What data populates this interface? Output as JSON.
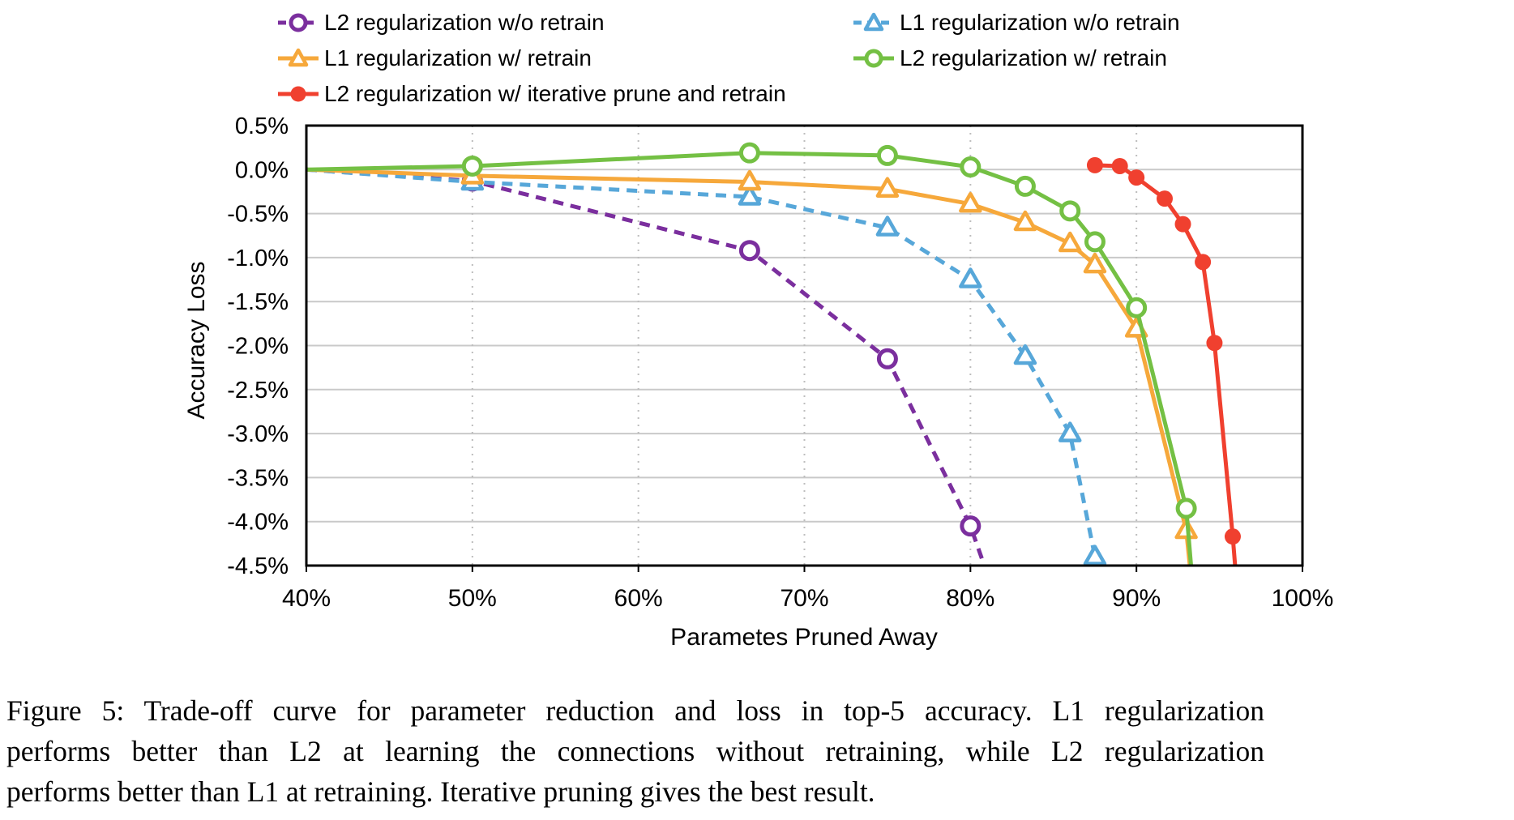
{
  "figure": {
    "caption_lines": [
      "Figure 5: Trade-off curve for parameter reduction and loss in top-5 accuracy. L1 regularization",
      "performs better than L2 at learning the connections without retraining, while L2 regularization",
      "performs better than L1 at retraining. Iterative pruning gives the best result."
    ]
  },
  "chart_data": {
    "type": "line",
    "title": "",
    "xlabel": "Parametes Pruned Away",
    "ylabel": "Accuracy Loss",
    "xlim": [
      40,
      100
    ],
    "ylim": [
      -4.5,
      0.5
    ],
    "xticks": {
      "values": [
        40,
        50,
        60,
        70,
        80,
        90,
        100
      ],
      "labels": [
        "40%",
        "50%",
        "60%",
        "70%",
        "80%",
        "90%",
        "100%"
      ]
    },
    "yticks": {
      "values": [
        0.5,
        0.0,
        -0.5,
        -1.0,
        -1.5,
        -2.0,
        -2.5,
        -3.0,
        -3.5,
        -4.0,
        -4.5
      ],
      "labels": [
        "0.5%",
        "0.0%",
        "-0.5%",
        "-1.0%",
        "-1.5%",
        "-2.0%",
        "-2.5%",
        "-3.0%",
        "-3.5%",
        "-4.0%",
        "-4.5%"
      ]
    },
    "grid": {
      "horizontal": "solid",
      "vertical": "dotted",
      "h_color": "#c9c9c9",
      "v_color": "#bdbdbd"
    },
    "axis_color": "#000000",
    "legend_position": "top-two-columns",
    "legend_columns": [
      [
        0,
        1,
        2
      ],
      [
        3,
        4
      ]
    ],
    "series": [
      {
        "name": "L2 regularization w/o retrain",
        "color": "#7B2F9E",
        "line_style": "dashed",
        "marker": "open-circle",
        "points": [
          [
            40,
            0
          ],
          [
            50,
            -0.13
          ],
          [
            66.7,
            -0.92
          ],
          [
            75,
            -2.15
          ],
          [
            80,
            -4.05
          ]
        ],
        "tail": [
          [
            81.3,
            -4.75
          ]
        ]
      },
      {
        "name": "L1 regularization w/ retrain",
        "color": "#F6A83B",
        "line_style": "solid",
        "marker": "open-triangle",
        "points": [
          [
            40,
            0
          ],
          [
            50,
            -0.07
          ],
          [
            66.7,
            -0.14
          ],
          [
            75,
            -0.22
          ],
          [
            80,
            -0.39
          ],
          [
            83.3,
            -0.6
          ],
          [
            86,
            -0.84
          ],
          [
            87.5,
            -1.08
          ],
          [
            90,
            -1.81
          ],
          [
            93,
            -4.1
          ]
        ],
        "tail": [
          [
            93.35,
            -4.75
          ]
        ]
      },
      {
        "name": "L2 regularization w/ iterative prune and retrain",
        "color": "#F0402F",
        "line_style": "solid",
        "marker": "filled-circle",
        "points": [
          [
            87.5,
            0.05
          ],
          [
            89,
            0.04
          ],
          [
            90,
            -0.09
          ],
          [
            91.7,
            -0.33
          ],
          [
            92.8,
            -0.62
          ],
          [
            94,
            -1.05
          ],
          [
            94.7,
            -1.97
          ],
          [
            95.8,
            -4.17
          ]
        ],
        "tail": [
          [
            96.05,
            -4.75
          ]
        ]
      },
      {
        "name": "L1 regularization w/o retrain",
        "color": "#57A7D9",
        "line_style": "dashed",
        "marker": "open-triangle",
        "points": [
          [
            40,
            0
          ],
          [
            50,
            -0.14
          ],
          [
            66.7,
            -0.31
          ],
          [
            75,
            -0.66
          ],
          [
            80,
            -1.25
          ],
          [
            83.3,
            -2.12
          ],
          [
            86,
            -3.0
          ],
          [
            87.5,
            -4.4
          ]
        ],
        "tail": [
          [
            87.8,
            -4.7
          ]
        ]
      },
      {
        "name": "L2 regularization w/ retrain",
        "color": "#74C044",
        "line_style": "solid",
        "marker": "open-circle",
        "points": [
          [
            40,
            0
          ],
          [
            50,
            0.04
          ],
          [
            66.7,
            0.19
          ],
          [
            75,
            0.16
          ],
          [
            80,
            0.03
          ],
          [
            83.3,
            -0.19
          ],
          [
            86,
            -0.47
          ],
          [
            87.5,
            -0.82
          ],
          [
            90,
            -1.57
          ],
          [
            93,
            -3.85
          ]
        ],
        "tail": [
          [
            93.4,
            -4.75
          ]
        ]
      }
    ]
  }
}
